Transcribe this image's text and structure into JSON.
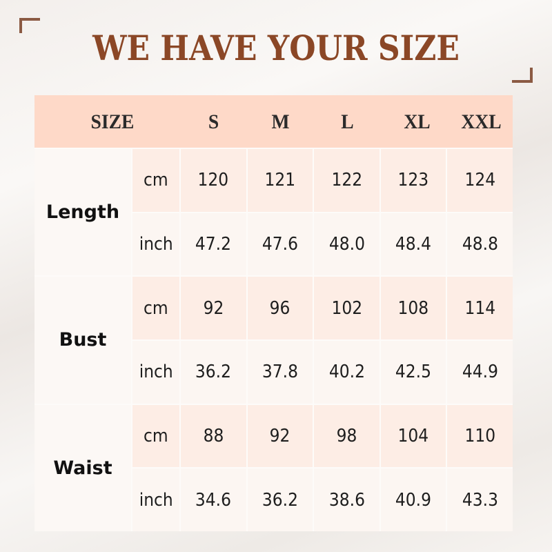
{
  "title": "WE HAVE YOUR SIZE",
  "header": [
    "SIZE",
    "S",
    "M",
    "L",
    "XL",
    "XXL"
  ],
  "measures": [
    {
      "label": "Length",
      "rows": [
        {
          "unit": "cm",
          "values": [
            "120",
            "121",
            "122",
            "123",
            "124"
          ]
        },
        {
          "unit": "inch",
          "values": [
            "47.2",
            "47.6",
            "48.0",
            "48.4",
            "48.8"
          ]
        }
      ]
    },
    {
      "label": "Bust",
      "rows": [
        {
          "unit": "cm",
          "values": [
            "92",
            "96",
            "102",
            "108",
            "114"
          ]
        },
        {
          "unit": "inch",
          "values": [
            "36.2",
            "37.8",
            "40.2",
            "42.5",
            "44.9"
          ]
        }
      ]
    },
    {
      "label": "Waist",
      "rows": [
        {
          "unit": "cm",
          "values": [
            "88",
            "92",
            "98",
            "104",
            "110"
          ]
        },
        {
          "unit": "inch",
          "values": [
            "34.6",
            "36.2",
            "38.6",
            "40.9",
            "43.3"
          ]
        }
      ]
    }
  ],
  "colors": {
    "title": "#8b4726",
    "header_bg": "#fed9c8",
    "cm_row_bg": "#fdede5",
    "inch_row_bg": "#fcf6f2"
  }
}
